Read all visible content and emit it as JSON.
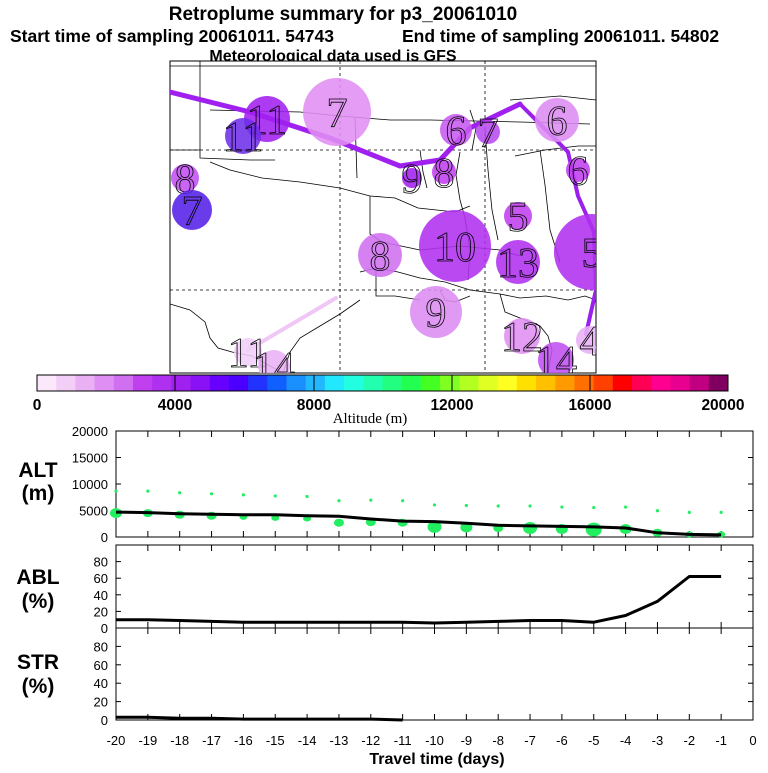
{
  "header": {
    "title": "Retroplume summary for p3_20061010",
    "start_label": "Start time of sampling 20061011. 54743",
    "end_label": "End time of sampling 20061011. 54802",
    "met_label": "Meteorological data used is GFS"
  },
  "map": {
    "plume_color": "#a020f0",
    "markers": [
      {
        "label": "11",
        "color": "#a020f0"
      },
      {
        "label": "11",
        "color": "#6f2fe8"
      },
      {
        "label": "7",
        "color": "#e08ef3"
      },
      {
        "label": "6",
        "color": "#c75af0"
      },
      {
        "label": "7",
        "color": "#b84bef"
      },
      {
        "label": "6",
        "color": "#dc8cf2"
      },
      {
        "label": "9",
        "color": "#a020f0"
      },
      {
        "label": "8",
        "color": "#c040f0"
      },
      {
        "label": "6",
        "color": "#c040f0"
      },
      {
        "label": "8",
        "color": "#c050f0"
      },
      {
        "label": "7",
        "color": "#5520e8"
      },
      {
        "label": "5",
        "color": "#c040f0"
      },
      {
        "label": "8",
        "color": "#d070f0"
      },
      {
        "label": "10",
        "color": "#b030f0"
      },
      {
        "label": "13",
        "color": "#b030f0"
      },
      {
        "label": "5",
        "color": "#b030f0"
      },
      {
        "label": "9",
        "color": "#dc8cf2"
      },
      {
        "label": "12",
        "color": "#e08ef3"
      },
      {
        "label": "14",
        "color": "#c050f0"
      },
      {
        "label": "4",
        "color": "#e8b0f6"
      },
      {
        "label": "11",
        "color": "#f0cff8"
      },
      {
        "label": "14",
        "color": "#e8b0f6"
      }
    ]
  },
  "colorbar": {
    "xlabel": "Altitude (m)",
    "ticks": [
      "0",
      "4000",
      "8000",
      "12000",
      "16000",
      "20000"
    ],
    "colors": [
      "#fbe9fb",
      "#f3cff7",
      "#e9b1f4",
      "#df8ff3",
      "#d070f0",
      "#c040f0",
      "#b030f0",
      "#a020f0",
      "#8a10f5",
      "#6600ff",
      "#4b00ff",
      "#2233ff",
      "#1060ff",
      "#1a90ff",
      "#22b8ff",
      "#22e8ff",
      "#22ffe0",
      "#22ffb0",
      "#22ff80",
      "#22ff50",
      "#44ff22",
      "#80ff22",
      "#b4ff22",
      "#e0ff22",
      "#ffff22",
      "#ffe000",
      "#ffc000",
      "#ff9a00",
      "#ff7000",
      "#ff4000",
      "#ff0000",
      "#ff0055",
      "#ff0090",
      "#e80090",
      "#c00080",
      "#800060"
    ]
  },
  "chart_data": [
    {
      "type": "line",
      "panel": "ALT",
      "title": "ALT",
      "ylabel": "(m)",
      "x": [
        -20,
        -19,
        -18,
        -17,
        -16,
        -15,
        -14,
        -13,
        -12,
        -11,
        -10,
        -9,
        -8,
        -7,
        -6,
        -5,
        -4,
        -3,
        -2,
        -1
      ],
      "values": [
        4700,
        4600,
        4400,
        4300,
        4200,
        4200,
        4000,
        3900,
        3400,
        3000,
        2900,
        2600,
        2200,
        2100,
        2000,
        1900,
        1700,
        800,
        500,
        400
      ],
      "markers": [
        {
          "x": -20,
          "y": 4500,
          "size": 5
        },
        {
          "x": -19,
          "y": 4500,
          "size": 4
        },
        {
          "x": -18,
          "y": 4200,
          "size": 4
        },
        {
          "x": -17,
          "y": 4000,
          "size": 4
        },
        {
          "x": -16,
          "y": 3800,
          "size": 3
        },
        {
          "x": -15,
          "y": 3600,
          "size": 3
        },
        {
          "x": -14,
          "y": 3500,
          "size": 3
        },
        {
          "x": -13,
          "y": 2700,
          "size": 4
        },
        {
          "x": -12,
          "y": 2800,
          "size": 4
        },
        {
          "x": -11,
          "y": 2700,
          "size": 4
        },
        {
          "x": -10,
          "y": 1900,
          "size": 6
        },
        {
          "x": -9,
          "y": 1800,
          "size": 5
        },
        {
          "x": -8,
          "y": 1700,
          "size": 4
        },
        {
          "x": -7,
          "y": 1700,
          "size": 6
        },
        {
          "x": -6,
          "y": 1500,
          "size": 5
        },
        {
          "x": -5,
          "y": 1400,
          "size": 7
        },
        {
          "x": -4,
          "y": 1500,
          "size": 5
        },
        {
          "x": -3,
          "y": 800,
          "size": 4
        },
        {
          "x": -2,
          "y": 500,
          "size": 3
        },
        {
          "x": -1,
          "y": 500,
          "size": 3
        }
      ],
      "marker_color": "#22ee60",
      "xlim": [
        -20,
        0
      ],
      "ylim": [
        0,
        20000
      ],
      "yticks": [
        0,
        5000,
        10000,
        15000,
        20000
      ]
    },
    {
      "type": "line",
      "panel": "ABL",
      "title": "ABL",
      "ylabel": "(%)",
      "x": [
        -20,
        -19,
        -18,
        -17,
        -16,
        -15,
        -14,
        -13,
        -12,
        -11,
        -10,
        -9,
        -8,
        -7,
        -6,
        -5,
        -4,
        -3,
        -2,
        -1
      ],
      "values": [
        10,
        10,
        9,
        8,
        7,
        7,
        7,
        7,
        7,
        7,
        6,
        7,
        8,
        9,
        9,
        7,
        15,
        32,
        62,
        62
      ],
      "xlim": [
        -20,
        0
      ],
      "ylim": [
        0,
        100
      ],
      "yticks": [
        0,
        20,
        40,
        60,
        80
      ]
    },
    {
      "type": "line",
      "panel": "STR",
      "title": "STR",
      "ylabel": "(%)",
      "x": [
        -20,
        -19,
        -18,
        -17,
        -16,
        -15,
        -14,
        -13,
        -12,
        -11
      ],
      "values": [
        3,
        3,
        2,
        2,
        1,
        1,
        1,
        1,
        1,
        0
      ],
      "xlim": [
        -20,
        0
      ],
      "ylim": [
        0,
        100
      ],
      "yticks": [
        0,
        20,
        40,
        60,
        80
      ],
      "xlabel": "Travel time (days)",
      "xticks": [
        "-20",
        "-19",
        "-18",
        "-17",
        "-16",
        "-15",
        "-14",
        "-13",
        "-12",
        "-11",
        "-10",
        "-9",
        "-8",
        "-7",
        "-6",
        "-5",
        "-4",
        "-3",
        "-2",
        "-1",
        "0"
      ]
    }
  ]
}
